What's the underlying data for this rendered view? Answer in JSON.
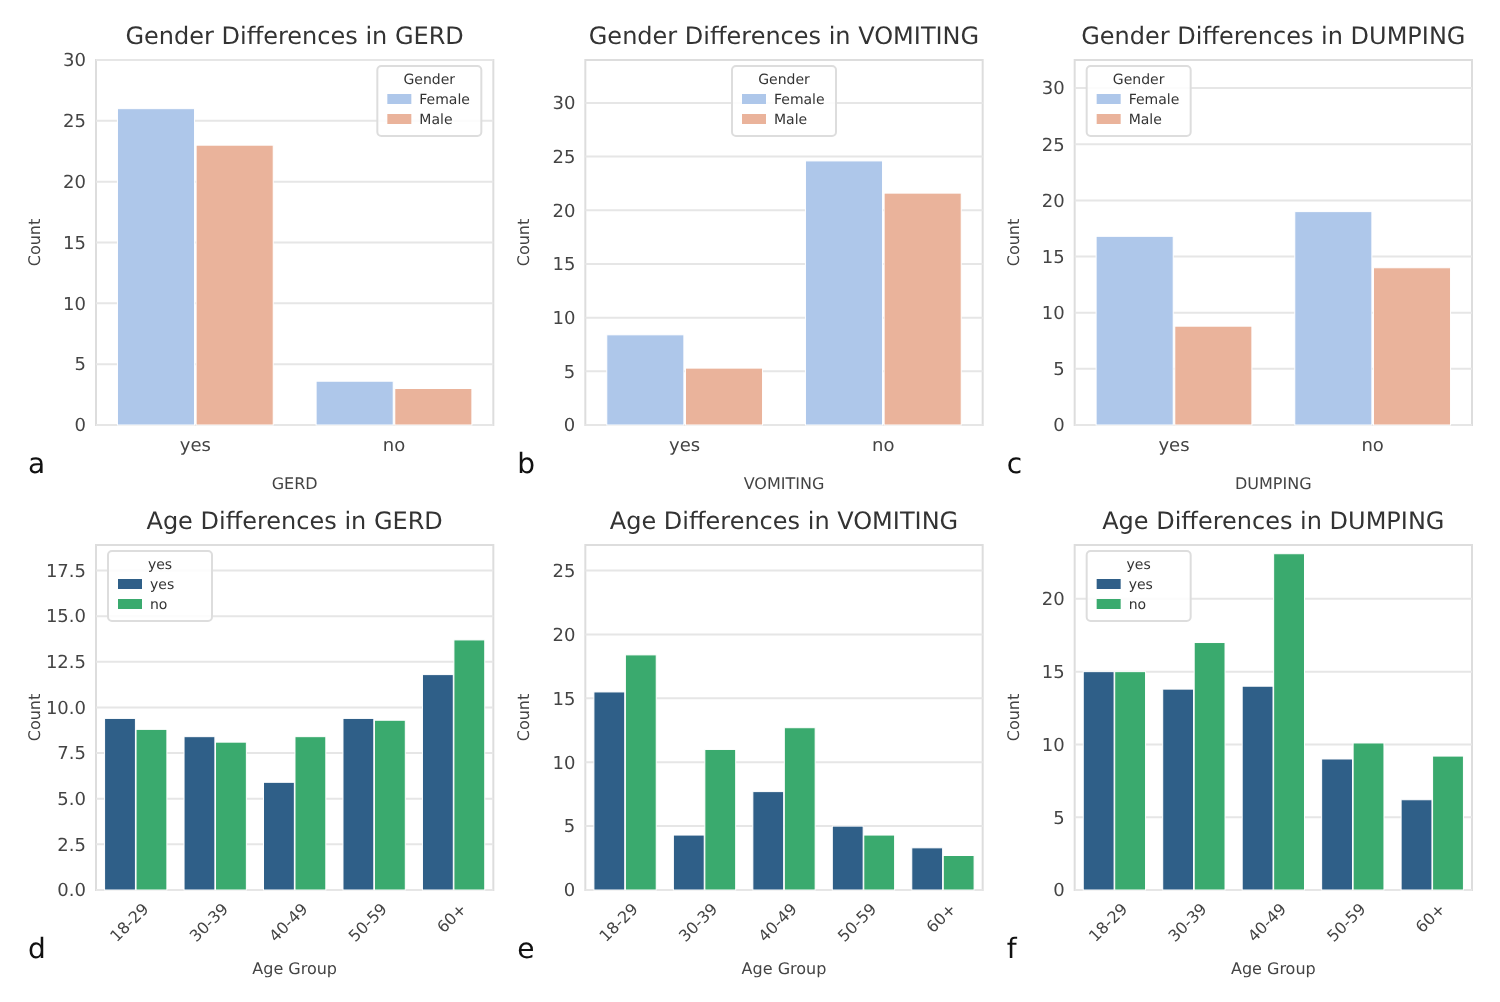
{
  "chart_data": [
    {
      "type": "bar",
      "title": "Gender Differences in GERD",
      "xlabel": "GERD",
      "ylabel": "Count",
      "categories": [
        "yes",
        "no"
      ],
      "series": [
        {
          "name": "Female",
          "color": "#aec7ea",
          "values": [
            26,
            3.6
          ]
        },
        {
          "name": "Male",
          "color": "#eab39b",
          "values": [
            23,
            3.0
          ]
        }
      ],
      "ylim": [
        0,
        30
      ],
      "yticks": [
        0,
        5,
        10,
        15,
        20,
        25,
        30
      ],
      "grid": "y",
      "legend": "top right",
      "legend_title": "Gender",
      "annotations": [
        "a"
      ]
    },
    {
      "type": "bar",
      "title": "Gender Differences in VOMITING",
      "xlabel": "VOMITING",
      "ylabel": "Count",
      "categories": [
        "yes",
        "no"
      ],
      "series": [
        {
          "name": "Female",
          "color": "#aec7ea",
          "values": [
            8.4,
            24.6
          ]
        },
        {
          "name": "Male",
          "color": "#eab39b",
          "values": [
            5.3,
            21.6
          ]
        }
      ],
      "ylim": [
        0,
        34
      ],
      "yticks": [
        0,
        5,
        10,
        15,
        20,
        25,
        30
      ],
      "grid": "y",
      "legend": "top",
      "legend_title": "Gender",
      "annotations": [
        "b"
      ]
    },
    {
      "type": "bar",
      "title": "Gender Differences in DUMPING",
      "xlabel": "DUMPING",
      "ylabel": "Count",
      "categories": [
        "yes",
        "no"
      ],
      "series": [
        {
          "name": "Female",
          "color": "#aec7ea",
          "values": [
            16.8,
            19
          ]
        },
        {
          "name": "Male",
          "color": "#eab39b",
          "values": [
            8.8,
            14
          ]
        }
      ],
      "ylim": [
        0,
        32.5
      ],
      "yticks": [
        0,
        5,
        10,
        15,
        20,
        25,
        30
      ],
      "grid": "y",
      "legend": "top left",
      "legend_title": "Gender",
      "annotations": [
        "c"
      ]
    },
    {
      "type": "bar",
      "title": "Age Differences in GERD",
      "xlabel": "Age Group",
      "ylabel": "Count",
      "categories": [
        "18-29",
        "30-39",
        "40-49",
        "50-59",
        "60+"
      ],
      "series": [
        {
          "name": "yes",
          "color": "#2f5f88",
          "values": [
            9.4,
            8.4,
            5.9,
            9.4,
            11.8
          ]
        },
        {
          "name": "no",
          "color": "#3aaa6e",
          "values": [
            8.8,
            8.1,
            8.4,
            9.3,
            13.7
          ]
        }
      ],
      "ylim": [
        0,
        18.9
      ],
      "yticks": [
        {
          "value": 0,
          "label": "0.0"
        },
        2.5,
        {
          "value": 5,
          "label": "5.0"
        },
        7.5,
        {
          "value": 10,
          "label": "10.0"
        },
        12.5,
        {
          "value": 15,
          "label": "15.0"
        },
        17.5
      ],
      "grid": "y",
      "legend": "top left",
      "legend_title": "yes",
      "annotations": [
        "d"
      ]
    },
    {
      "type": "bar",
      "title": "Age Differences in VOMITING",
      "xlabel": "Age Group",
      "ylabel": "Count",
      "categories": [
        "18-29",
        "30-39",
        "40-49",
        "50-59",
        "60+"
      ],
      "series": [
        {
          "color": "#2f5f88",
          "values": [
            15.5,
            4.3,
            7.7,
            5.0,
            3.3
          ]
        },
        {
          "color": "#3aaa6e",
          "values": [
            18.4,
            11.0,
            12.7,
            4.3,
            2.7
          ]
        }
      ],
      "ylim": [
        0,
        27
      ],
      "yticks": [
        0,
        5,
        10,
        15,
        20,
        25
      ],
      "grid": "y",
      "annotations": [
        "e"
      ]
    },
    {
      "type": "bar",
      "title": "Age Differences in DUMPING",
      "xlabel": "Age Group",
      "ylabel": "Count",
      "categories": [
        "18-29",
        "30-39",
        "40-49",
        "50-59",
        "60+"
      ],
      "series": [
        {
          "name": "yes",
          "color": "#2f5f88",
          "values": [
            15.0,
            13.8,
            14.0,
            9.0,
            6.2
          ]
        },
        {
          "name": "no",
          "color": "#3aaa6e",
          "values": [
            15.0,
            17.0,
            23.1,
            10.1,
            9.2
          ]
        }
      ],
      "ylim": [
        0,
        23.7
      ],
      "yticks": [
        0,
        5,
        10,
        15,
        20
      ],
      "grid": "y",
      "legend": "top left",
      "legend_title": "yes",
      "annotations": [
        "f"
      ]
    }
  ]
}
